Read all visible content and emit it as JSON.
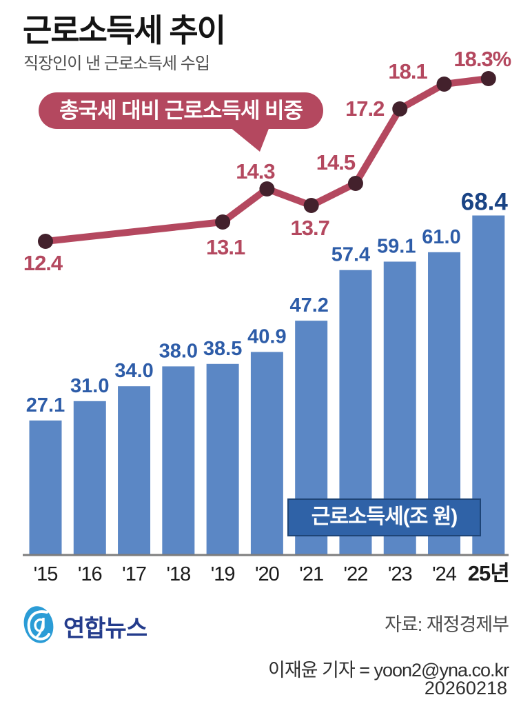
{
  "header": {
    "title": "근로소득세 추이",
    "subtitle": "직장인이 낸 근로소득세 수입"
  },
  "annotations": {
    "line_badge": "총국세 대비 근로소득세 비중",
    "bar_badge": "근로소득세(조 원)"
  },
  "chart_data": {
    "type": "bar+line",
    "categories": [
      "'15",
      "'16",
      "'17",
      "'18",
      "'19",
      "'20",
      "'21",
      "'22",
      "'23",
      "'24",
      "25년"
    ],
    "bar_series": {
      "name": "근로소득세(조 원)",
      "unit": "조 원",
      "values": [
        27.1,
        31.0,
        34.0,
        38.0,
        38.5,
        40.9,
        47.2,
        57.4,
        59.1,
        61.0,
        68.4
      ]
    },
    "line_series": {
      "name": "총국세 대비 근로소득세 비중",
      "unit": "%",
      "points": [
        {
          "year": "'15",
          "value": 12.4,
          "label": "12.4"
        },
        {
          "year": "'19",
          "value": 13.1,
          "label": "13.1"
        },
        {
          "year": "'20",
          "value": 14.3,
          "label": "14.3"
        },
        {
          "year": "'21",
          "value": 13.7,
          "label": "13.7"
        },
        {
          "year": "'22",
          "value": 14.5,
          "label": "14.5"
        },
        {
          "year": "'23",
          "value": 17.2,
          "label": "17.2"
        },
        {
          "year": "'24",
          "value": 18.1,
          "label": "18.1"
        },
        {
          "year": "25년",
          "value": 18.3,
          "label": "18.3%"
        }
      ]
    },
    "ylim_bar": [
      0,
      80
    ],
    "grid": false,
    "legend_position": "none",
    "colors": {
      "bar": "#5b87c5",
      "bar_label": "#2d5ca8",
      "bar_label_final": "#1a4485",
      "line": "#b4485f",
      "point": "#43212c",
      "line_label": "#b4485f",
      "line_badge_bg": "#b4485f",
      "bar_badge_bg": "#2f62a7",
      "axis": "#7d7d7d",
      "axis_label": "#1c1c1c"
    }
  },
  "footer": {
    "brand": "연합뉴스",
    "source": "자료: 재정경제부",
    "credit": "이재윤 기자 = yoon2@yna.co.kr",
    "date": "20260218"
  }
}
